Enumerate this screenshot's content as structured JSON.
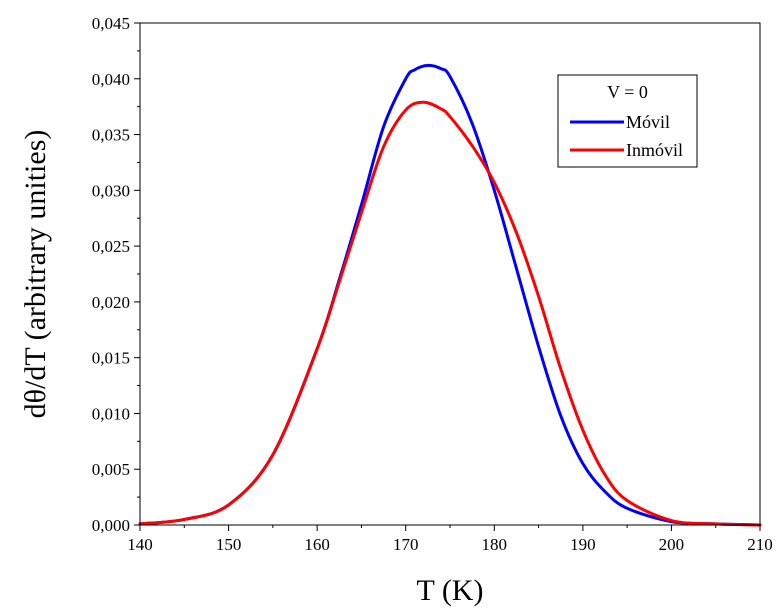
{
  "chart_data": {
    "type": "line",
    "title": "",
    "xlabel": "T (K)",
    "ylabel": "dθ/dT (arbitrary unities)",
    "xlim": [
      140,
      210
    ],
    "ylim": [
      0,
      0.045
    ],
    "x_ticks": [
      "140",
      "150",
      "160",
      "170",
      "180",
      "190",
      "200",
      "210"
    ],
    "y_ticks": [
      "0,000",
      "0,005",
      "0,010",
      "0,015",
      "0,020",
      "0,025",
      "0,030",
      "0,035",
      "0,040",
      "0,045"
    ],
    "grid": false,
    "legend": {
      "placement": "top-right",
      "title": "V = 0"
    },
    "series": [
      {
        "name": "Móvil",
        "color": "#0000ff",
        "x": [
          140,
          145,
          150,
          155,
          160,
          162.5,
          165,
          167.5,
          170,
          171,
          172.5,
          174,
          175,
          177.5,
          180,
          182.5,
          185,
          187.5,
          190,
          192.5,
          195,
          200,
          205,
          210
        ],
        "y": [
          0.0001,
          0.0005,
          0.0018,
          0.0063,
          0.0158,
          0.022,
          0.0287,
          0.0357,
          0.04,
          0.0408,
          0.0412,
          0.0409,
          0.0402,
          0.036,
          0.03,
          0.023,
          0.016,
          0.0098,
          0.0055,
          0.003,
          0.0015,
          0.0003,
          0.0001,
          0.0
        ]
      },
      {
        "name": "Inmóvil",
        "color": "#ff0000",
        "x": [
          140,
          145,
          150,
          155,
          160,
          162.5,
          165,
          167.5,
          170,
          172,
          174,
          175,
          177.5,
          180,
          182.5,
          185,
          187.5,
          190,
          192.5,
          195,
          200,
          205,
          210
        ],
        "y": [
          0.0001,
          0.0005,
          0.0018,
          0.0063,
          0.0158,
          0.0218,
          0.028,
          0.0339,
          0.0372,
          0.0379,
          0.0373,
          0.0366,
          0.034,
          0.0307,
          0.0262,
          0.0205,
          0.014,
          0.0085,
          0.0045,
          0.0022,
          0.0004,
          0.0001,
          0.0
        ]
      }
    ]
  }
}
